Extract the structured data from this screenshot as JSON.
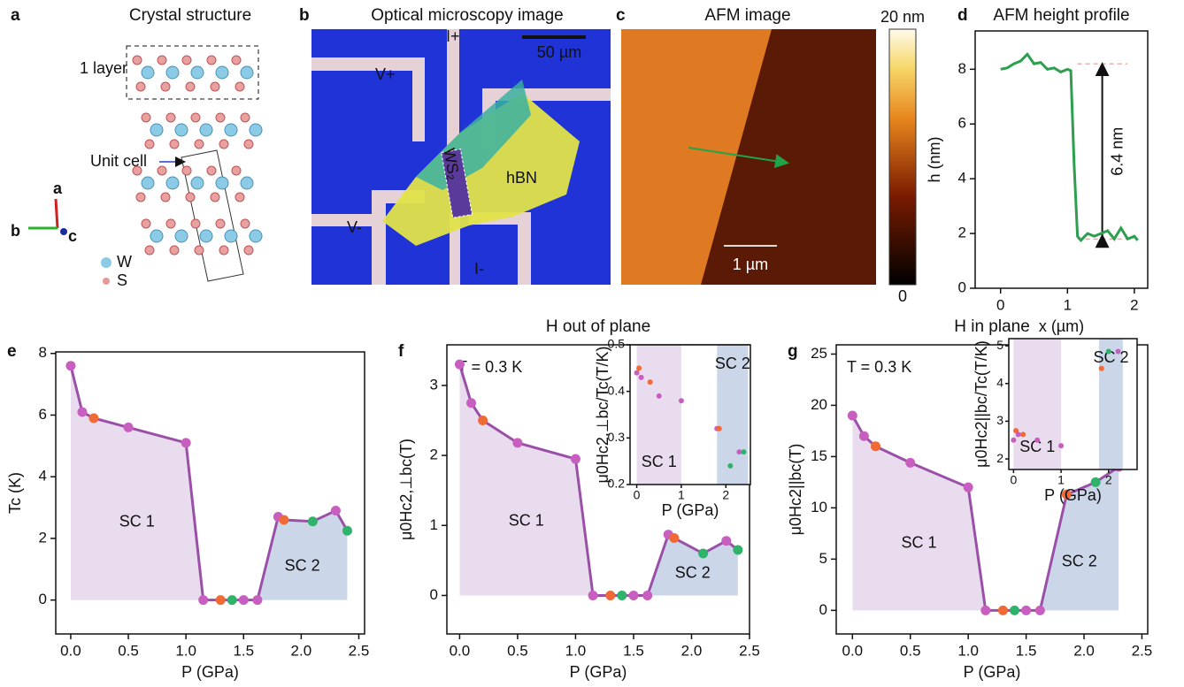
{
  "panels": {
    "a": {
      "label": "a",
      "title": "Crystal structure",
      "layer": "1 layer",
      "unit_cell": "Unit cell",
      "axes": [
        "a",
        "b",
        "c"
      ],
      "legend": [
        "W",
        "S"
      ]
    },
    "b": {
      "label": "b",
      "title": "Optical microscopy image",
      "scale": "50 µm",
      "contacts": [
        "I+",
        "V+",
        "V-",
        "I-"
      ],
      "flake": "hBN",
      "sample": "WS₂"
    },
    "c": {
      "label": "c",
      "title": "AFM image",
      "scale": "1 µm",
      "colorbar": [
        "20 nm",
        "0"
      ]
    }
  },
  "chart_data": [
    {
      "type": "line",
      "panel": "d",
      "title": "AFM height profile",
      "xlabel": "x (µm)",
      "ylabel": "h (nm)",
      "color": "#2e9e4f",
      "x": [
        0,
        0.1,
        0.2,
        0.3,
        0.4,
        0.5,
        0.6,
        0.7,
        0.8,
        0.9,
        1.0,
        1.05,
        1.1,
        1.15,
        1.2,
        1.3,
        1.4,
        1.5,
        1.6,
        1.7,
        1.8,
        1.9,
        2.0,
        2.05
      ],
      "values": [
        8.0,
        8.05,
        8.2,
        8.3,
        8.55,
        8.2,
        8.25,
        8.0,
        8.05,
        7.9,
        8.0,
        7.95,
        4.5,
        1.9,
        1.75,
        2.0,
        1.9,
        2.0,
        2.1,
        1.8,
        2.2,
        1.8,
        1.9,
        1.75
      ],
      "ref_lines": [
        8.2,
        1.8
      ],
      "annotation": "6.4 nm",
      "xlim": [
        -0.38,
        2.2
      ],
      "ylim": [
        0,
        9.4
      ],
      "xticks": [
        0,
        1,
        2
      ],
      "yticks": [
        0,
        2,
        4,
        6,
        8
      ]
    },
    {
      "type": "line",
      "panel": "e",
      "xlabel": "P (GPa)",
      "ylabel": "Tc (K)",
      "color": "#9b50a8",
      "markers": true,
      "x": [
        0,
        0.1,
        0.2,
        0.5,
        1.0,
        1.15,
        1.3,
        1.4,
        1.5,
        1.62,
        1.8,
        1.85,
        2.1,
        2.3,
        2.4
      ],
      "values": [
        7.6,
        6.1,
        5.9,
        5.6,
        5.1,
        0,
        0,
        0,
        0,
        0,
        2.7,
        2.6,
        2.55,
        2.9,
        2.25
      ],
      "point_colors": [
        "#c85fc0",
        "#c85fc0",
        "#f06a36",
        "#c85fc0",
        "#c85fc0",
        "#c85fc0",
        "#f06a36",
        "#2fb36b",
        "#c85fc0",
        "#c85fc0",
        "#c85fc0",
        "#f06a36",
        "#2fb36b",
        "#c85fc0",
        "#2fb36b"
      ],
      "areas": [
        {
          "name": "SC 1",
          "color": "#e9dcef",
          "xlim": [
            0,
            1.15
          ]
        },
        {
          "name": "SC 2",
          "color": "#cbd7e9",
          "xlim": [
            1.62,
            2.4
          ]
        }
      ],
      "xlim": [
        -0.13,
        2.55
      ],
      "ylim": [
        -1.1,
        8.05
      ],
      "xticks": [
        {
          "value": 0,
          "label": "0.0"
        },
        0.5,
        {
          "value": 1,
          "label": "1.0"
        },
        1.5,
        {
          "value": 2,
          "label": "2.0"
        },
        2.5
      ],
      "yticks": [
        0,
        2,
        4,
        6,
        8
      ]
    },
    {
      "type": "line",
      "panel": "f",
      "title": "H out of plane",
      "annotation": "T = 0.3 K",
      "xlabel": "P (GPa)",
      "ylabel": "μ0Hc2,⊥bc(T)",
      "color": "#9b50a8",
      "markers": true,
      "x": [
        0,
        0.1,
        0.2,
        0.5,
        1.0,
        1.15,
        1.3,
        1.4,
        1.5,
        1.62,
        1.8,
        1.85,
        2.1,
        2.3,
        2.4
      ],
      "values": [
        3.3,
        2.75,
        2.5,
        2.18,
        1.95,
        0,
        0,
        0,
        0,
        0,
        0.87,
        0.82,
        0.6,
        0.78,
        0.65
      ],
      "point_colors": [
        "#c85fc0",
        "#c85fc0",
        "#f06a36",
        "#c85fc0",
        "#c85fc0",
        "#c85fc0",
        "#f06a36",
        "#2fb36b",
        "#c85fc0",
        "#c85fc0",
        "#c85fc0",
        "#f06a36",
        "#2fb36b",
        "#c85fc0",
        "#2fb36b"
      ],
      "areas": [
        {
          "name": "SC 1",
          "color": "#e9dcef",
          "xlim": [
            0,
            1.15
          ]
        },
        {
          "name": "SC 2",
          "color": "#cbd7e9",
          "xlim": [
            1.62,
            2.4
          ]
        }
      ],
      "xlim": [
        -0.11,
        2.5
      ],
      "ylim": [
        -0.55,
        3.58
      ],
      "xticks": [
        {
          "value": 0,
          "label": "0.0"
        },
        0.5,
        {
          "value": 1,
          "label": "1.0"
        },
        1.5,
        {
          "value": 2,
          "label": "2.0"
        },
        2.5
      ],
      "yticks": [
        0,
        1,
        2,
        3
      ]
    },
    {
      "type": "scatter",
      "inset": true,
      "xlabel": "P (GPa)",
      "ylabel": "μ0Hc2,⊥bc/Tc(T/K)",
      "x": [
        0.0,
        0.05,
        0.1,
        0.3,
        0.5,
        1.0,
        1.8,
        1.85,
        2.1,
        2.3,
        2.4
      ],
      "values": [
        0.44,
        0.45,
        0.43,
        0.42,
        0.39,
        0.38,
        0.32,
        0.32,
        0.24,
        0.27,
        0.27
      ],
      "point_colors": [
        "#c85fc0",
        "#f06a36",
        "#c85fc0",
        "#f06a36",
        "#c85fc0",
        "#c85fc0",
        "#c85fc0",
        "#f06a36",
        "#2fb36b",
        "#c85fc0",
        "#2fb36b"
      ],
      "areas": [
        {
          "name": "SC 1",
          "color": "#e9dcef",
          "xlim": [
            0,
            1.0
          ]
        },
        {
          "name": "SC 2",
          "color": "#cbd7e9",
          "xlim": [
            1.8,
            2.5
          ]
        }
      ],
      "xlim": [
        -0.15,
        2.55
      ],
      "ylim": [
        0.2,
        0.5
      ],
      "xticks": [
        0,
        1,
        2
      ],
      "yticks": [
        0.2,
        0.3,
        0.4,
        0.5
      ]
    },
    {
      "type": "line",
      "panel": "g",
      "title": "H in plane",
      "annotation": "T = 0.3 K",
      "xlabel": "P (GPa)",
      "ylabel": "μ0Hc2||bc(T)",
      "color": "#9b50a8",
      "markers": true,
      "x": [
        0,
        0.1,
        0.2,
        0.5,
        1.0,
        1.15,
        1.3,
        1.4,
        1.5,
        1.62,
        1.85,
        2.1,
        2.3
      ],
      "values": [
        19,
        17,
        16,
        14.4,
        12,
        0,
        0,
        0,
        0,
        0,
        11.3,
        12.5,
        14
      ],
      "point_colors": [
        "#c85fc0",
        "#c85fc0",
        "#f06a36",
        "#c85fc0",
        "#c85fc0",
        "#c85fc0",
        "#f06a36",
        "#2fb36b",
        "#c85fc0",
        "#c85fc0",
        "#f06a36",
        "#2fb36b",
        "#c85fc0"
      ],
      "areas": [
        {
          "name": "SC 1",
          "color": "#e9dcef",
          "xlim": [
            0,
            1.15
          ]
        },
        {
          "name": "SC 2",
          "color": "#cbd7e9",
          "xlim": [
            1.62,
            2.3
          ]
        }
      ],
      "xlim": [
        -0.14,
        2.55
      ],
      "ylim": [
        -2.3,
        25.9
      ],
      "xticks": [
        {
          "value": 0,
          "label": "0.0"
        },
        0.5,
        {
          "value": 1,
          "label": "1.0"
        },
        1.5,
        {
          "value": 2,
          "label": "2.0"
        },
        2.5
      ],
      "yticks": [
        0,
        5,
        10,
        15,
        20,
        25
      ]
    },
    {
      "type": "scatter",
      "inset": true,
      "xlabel": "P (GPa)",
      "ylabel": "μ0Hc2||bc/Tc(T/K)",
      "x": [
        0,
        0.05,
        0.1,
        0.2,
        0.5,
        1.0,
        1.85,
        2.0,
        2.2
      ],
      "values": [
        2.5,
        2.75,
        2.65,
        2.65,
        2.5,
        2.35,
        4.4,
        4.85,
        4.85
      ],
      "point_colors": [
        "#c85fc0",
        "#f06a36",
        "#c85fc0",
        "#f06a36",
        "#c85fc0",
        "#c85fc0",
        "#f06a36",
        "#2fb36b",
        "#c85fc0"
      ],
      "areas": [
        {
          "name": "SC 1",
          "color": "#e9dcef",
          "xlim": [
            0,
            1.0
          ]
        },
        {
          "name": "SC 2",
          "color": "#cbd7e9",
          "xlim": [
            1.8,
            2.3
          ]
        }
      ],
      "xlim": [
        -0.1,
        2.6
      ],
      "ylim": [
        1.72,
        5.19
      ],
      "xticks": [
        0,
        1,
        2
      ],
      "yticks": [
        2,
        3,
        4,
        5
      ]
    }
  ]
}
